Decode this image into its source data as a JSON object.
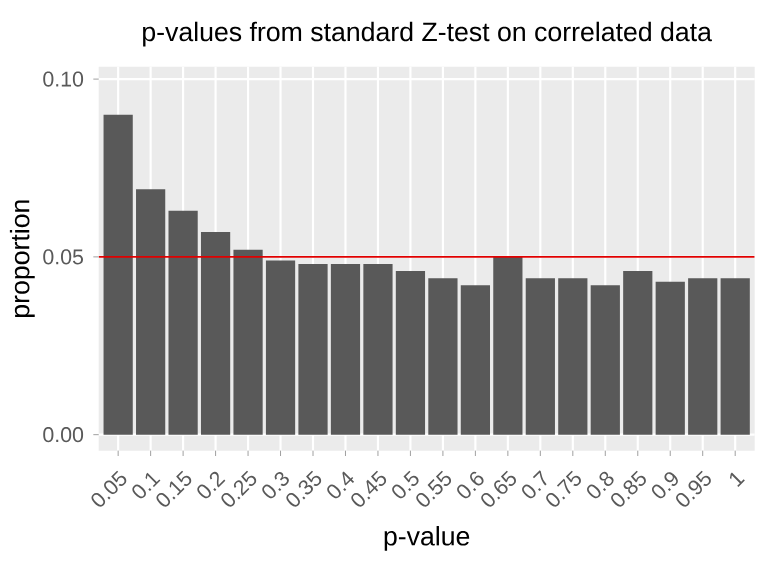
{
  "chart_data": {
    "type": "bar",
    "title": "p-values from standard Z-test on correlated data",
    "xlabel": "p-value",
    "ylabel": "proportion",
    "categories": [
      "0.05",
      "0.1",
      "0.15",
      "0.2",
      "0.25",
      "0.3",
      "0.35",
      "0.4",
      "0.45",
      "0.5",
      "0.55",
      "0.6",
      "0.65",
      "0.7",
      "0.75",
      "0.8",
      "0.85",
      "0.9",
      "0.95",
      "1"
    ],
    "values": [
      0.09,
      0.069,
      0.063,
      0.057,
      0.052,
      0.049,
      0.048,
      0.048,
      0.048,
      0.046,
      0.044,
      0.042,
      0.05,
      0.044,
      0.044,
      0.042,
      0.046,
      0.043,
      0.044,
      0.044
    ],
    "color": "#595959",
    "ylim": [
      -0.0045,
      0.1035
    ],
    "yticks": [
      {
        "value": 0,
        "label": "0.00"
      },
      {
        "value": 0.05,
        "label": "0.05"
      },
      {
        "value": 0.1,
        "label": "0.10"
      }
    ],
    "grid": true,
    "ref_lines": [
      {
        "axis": "y",
        "value": 0.05,
        "color": "#e00000"
      }
    ]
  }
}
